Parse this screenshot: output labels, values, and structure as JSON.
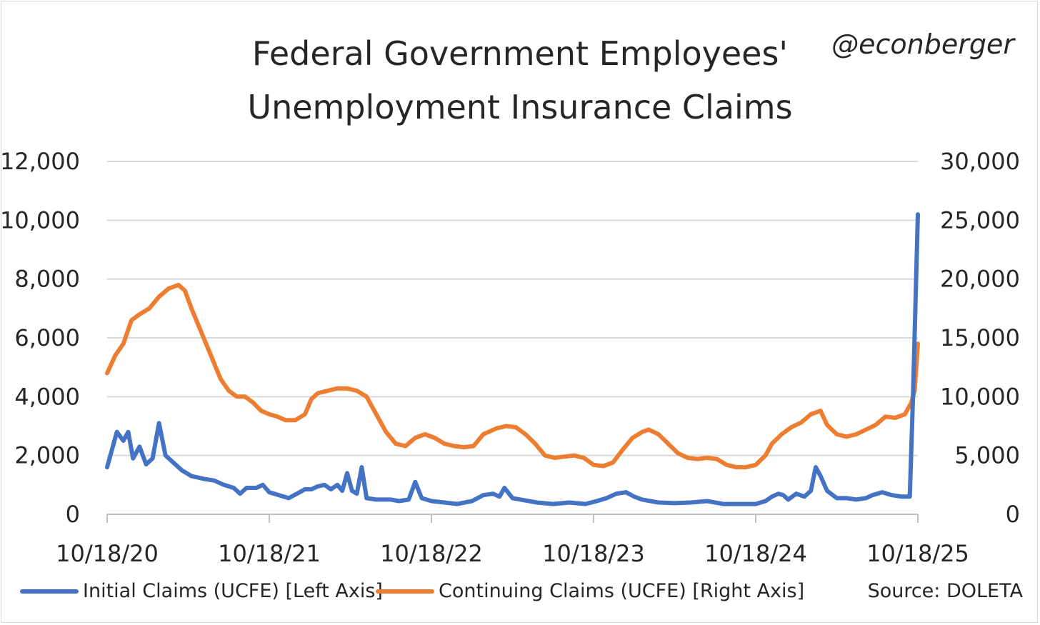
{
  "header": {
    "title_line1": "Federal Government Employees'",
    "title_line2": "Unemployment Insurance Claims",
    "handle": "@econberger"
  },
  "legend": {
    "initial": "Initial Claims (UCFE) [Left Axis]",
    "continuing": "Continuing Claims (UCFE) [Right Axis]",
    "source": "Source: DOLETA"
  },
  "colors": {
    "initial": "#4472C4",
    "continuing": "#ED7D31",
    "grid": "#d9d9d9",
    "text": "#262626"
  },
  "chart_data": {
    "type": "line",
    "title": "Federal Government Employees' Unemployment Insurance Claims",
    "xlim": [
      2020.8,
      2025.8
    ],
    "x_tick_values": [
      2020.8,
      2021.8,
      2022.8,
      2023.8,
      2024.8,
      2025.8
    ],
    "x_tick_labels": [
      "10/18/20",
      "10/18/21",
      "10/18/22",
      "10/18/23",
      "10/18/24",
      "10/18/25"
    ],
    "y_left": {
      "lim": [
        0,
        12000
      ],
      "ticks": [
        0,
        2000,
        4000,
        6000,
        8000,
        10000,
        12000
      ],
      "tick_labels": [
        "0",
        "2,000",
        "4,000",
        "6,000",
        "8,000",
        "10,000",
        "12,000"
      ]
    },
    "y_right": {
      "lim": [
        0,
        30000
      ],
      "ticks": [
        0,
        5000,
        10000,
        15000,
        20000,
        25000,
        30000
      ],
      "tick_labels": [
        "0",
        "5,000",
        "10,000",
        "15,000",
        "20,000",
        "25,000",
        "30,000"
      ]
    },
    "grid": "horizontal",
    "legend_position": "bottom",
    "series": [
      {
        "name": "Initial Claims (UCFE) [Left Axis]",
        "axis": "left",
        "color": "#4472C4",
        "points": [
          [
            2020.8,
            1600
          ],
          [
            2020.86,
            2800
          ],
          [
            2020.9,
            2500
          ],
          [
            2020.93,
            2800
          ],
          [
            2020.96,
            1900
          ],
          [
            2021.0,
            2300
          ],
          [
            2021.04,
            1700
          ],
          [
            2021.08,
            1900
          ],
          [
            2021.12,
            3100
          ],
          [
            2021.16,
            2000
          ],
          [
            2021.2,
            1800
          ],
          [
            2021.26,
            1500
          ],
          [
            2021.32,
            1300
          ],
          [
            2021.4,
            1200
          ],
          [
            2021.46,
            1150
          ],
          [
            2021.52,
            1000
          ],
          [
            2021.58,
            900
          ],
          [
            2021.62,
            700
          ],
          [
            2021.66,
            900
          ],
          [
            2021.72,
            900
          ],
          [
            2021.76,
            1000
          ],
          [
            2021.8,
            750
          ],
          [
            2021.86,
            650
          ],
          [
            2021.92,
            550
          ],
          [
            2021.97,
            700
          ],
          [
            2022.02,
            850
          ],
          [
            2022.06,
            850
          ],
          [
            2022.1,
            950
          ],
          [
            2022.14,
            1000
          ],
          [
            2022.18,
            850
          ],
          [
            2022.22,
            1000
          ],
          [
            2022.25,
            800
          ],
          [
            2022.28,
            1400
          ],
          [
            2022.31,
            800
          ],
          [
            2022.34,
            700
          ],
          [
            2022.37,
            1600
          ],
          [
            2022.4,
            550
          ],
          [
            2022.46,
            500
          ],
          [
            2022.55,
            500
          ],
          [
            2022.6,
            450
          ],
          [
            2022.66,
            500
          ],
          [
            2022.7,
            1100
          ],
          [
            2022.74,
            550
          ],
          [
            2022.8,
            450
          ],
          [
            2022.88,
            400
          ],
          [
            2022.96,
            350
          ],
          [
            2023.05,
            450
          ],
          [
            2023.12,
            650
          ],
          [
            2023.18,
            700
          ],
          [
            2023.22,
            600
          ],
          [
            2023.25,
            900
          ],
          [
            2023.3,
            550
          ],
          [
            2023.35,
            500
          ],
          [
            2023.45,
            400
          ],
          [
            2023.55,
            350
          ],
          [
            2023.65,
            400
          ],
          [
            2023.75,
            350
          ],
          [
            2023.82,
            450
          ],
          [
            2023.88,
            550
          ],
          [
            2023.94,
            700
          ],
          [
            2024.0,
            750
          ],
          [
            2024.05,
            600
          ],
          [
            2024.1,
            500
          ],
          [
            2024.2,
            400
          ],
          [
            2024.3,
            380
          ],
          [
            2024.4,
            400
          ],
          [
            2024.5,
            450
          ],
          [
            2024.6,
            350
          ],
          [
            2024.7,
            350
          ],
          [
            2024.8,
            350
          ],
          [
            2024.86,
            450
          ],
          [
            2024.9,
            600
          ],
          [
            2024.94,
            700
          ],
          [
            2024.97,
            650
          ],
          [
            2025.0,
            500
          ],
          [
            2025.05,
            700
          ],
          [
            2025.1,
            600
          ],
          [
            2025.14,
            800
          ],
          [
            2025.17,
            1600
          ],
          [
            2025.2,
            1300
          ],
          [
            2025.24,
            800
          ],
          [
            2025.3,
            550
          ],
          [
            2025.36,
            550
          ],
          [
            2025.42,
            500
          ],
          [
            2025.48,
            550
          ],
          [
            2025.52,
            650
          ],
          [
            2025.58,
            750
          ],
          [
            2025.64,
            650
          ],
          [
            2025.7,
            600
          ],
          [
            2025.75,
            600
          ],
          [
            2025.77,
            4000
          ],
          [
            2025.8,
            10200
          ]
        ]
      },
      {
        "name": "Continuing Claims (UCFE) [Right Axis]",
        "axis": "right",
        "color": "#ED7D31",
        "points": [
          [
            2020.8,
            12000
          ],
          [
            2020.85,
            13500
          ],
          [
            2020.9,
            14500
          ],
          [
            2020.95,
            16500
          ],
          [
            2021.0,
            17000
          ],
          [
            2021.06,
            17500
          ],
          [
            2021.12,
            18500
          ],
          [
            2021.18,
            19200
          ],
          [
            2021.24,
            19500
          ],
          [
            2021.28,
            19000
          ],
          [
            2021.32,
            17500
          ],
          [
            2021.38,
            15500
          ],
          [
            2021.44,
            13500
          ],
          [
            2021.5,
            11500
          ],
          [
            2021.55,
            10500
          ],
          [
            2021.6,
            10000
          ],
          [
            2021.65,
            10000
          ],
          [
            2021.7,
            9500
          ],
          [
            2021.75,
            8800
          ],
          [
            2021.8,
            8500
          ],
          [
            2021.85,
            8300
          ],
          [
            2021.9,
            8000
          ],
          [
            2021.96,
            8000
          ],
          [
            2022.02,
            8500
          ],
          [
            2022.06,
            9800
          ],
          [
            2022.1,
            10300
          ],
          [
            2022.16,
            10500
          ],
          [
            2022.22,
            10700
          ],
          [
            2022.28,
            10700
          ],
          [
            2022.34,
            10500
          ],
          [
            2022.4,
            10000
          ],
          [
            2022.46,
            8500
          ],
          [
            2022.52,
            7000
          ],
          [
            2022.58,
            6000
          ],
          [
            2022.64,
            5800
          ],
          [
            2022.7,
            6500
          ],
          [
            2022.76,
            6800
          ],
          [
            2022.82,
            6500
          ],
          [
            2022.88,
            6000
          ],
          [
            2022.94,
            5800
          ],
          [
            2023.0,
            5700
          ],
          [
            2023.06,
            5800
          ],
          [
            2023.12,
            6800
          ],
          [
            2023.2,
            7300
          ],
          [
            2023.26,
            7500
          ],
          [
            2023.32,
            7400
          ],
          [
            2023.38,
            6800
          ],
          [
            2023.44,
            6000
          ],
          [
            2023.5,
            5000
          ],
          [
            2023.56,
            4800
          ],
          [
            2023.62,
            4900
          ],
          [
            2023.68,
            5000
          ],
          [
            2023.74,
            4800
          ],
          [
            2023.8,
            4200
          ],
          [
            2023.86,
            4100
          ],
          [
            2023.92,
            4400
          ],
          [
            2023.98,
            5500
          ],
          [
            2024.04,
            6500
          ],
          [
            2024.1,
            7000
          ],
          [
            2024.14,
            7200
          ],
          [
            2024.2,
            6800
          ],
          [
            2024.26,
            6000
          ],
          [
            2024.32,
            5200
          ],
          [
            2024.38,
            4800
          ],
          [
            2024.44,
            4700
          ],
          [
            2024.5,
            4800
          ],
          [
            2024.56,
            4700
          ],
          [
            2024.62,
            4200
          ],
          [
            2024.68,
            4000
          ],
          [
            2024.74,
            4000
          ],
          [
            2024.8,
            4200
          ],
          [
            2024.86,
            5000
          ],
          [
            2024.9,
            6000
          ],
          [
            2024.96,
            6800
          ],
          [
            2025.02,
            7400
          ],
          [
            2025.08,
            7800
          ],
          [
            2025.14,
            8500
          ],
          [
            2025.2,
            8800
          ],
          [
            2025.24,
            7600
          ],
          [
            2025.3,
            6800
          ],
          [
            2025.36,
            6600
          ],
          [
            2025.42,
            6800
          ],
          [
            2025.48,
            7200
          ],
          [
            2025.54,
            7600
          ],
          [
            2025.6,
            8300
          ],
          [
            2025.66,
            8200
          ],
          [
            2025.72,
            8500
          ],
          [
            2025.76,
            9500
          ],
          [
            2025.78,
            10500
          ],
          [
            2025.8,
            14500
          ]
        ]
      }
    ]
  }
}
